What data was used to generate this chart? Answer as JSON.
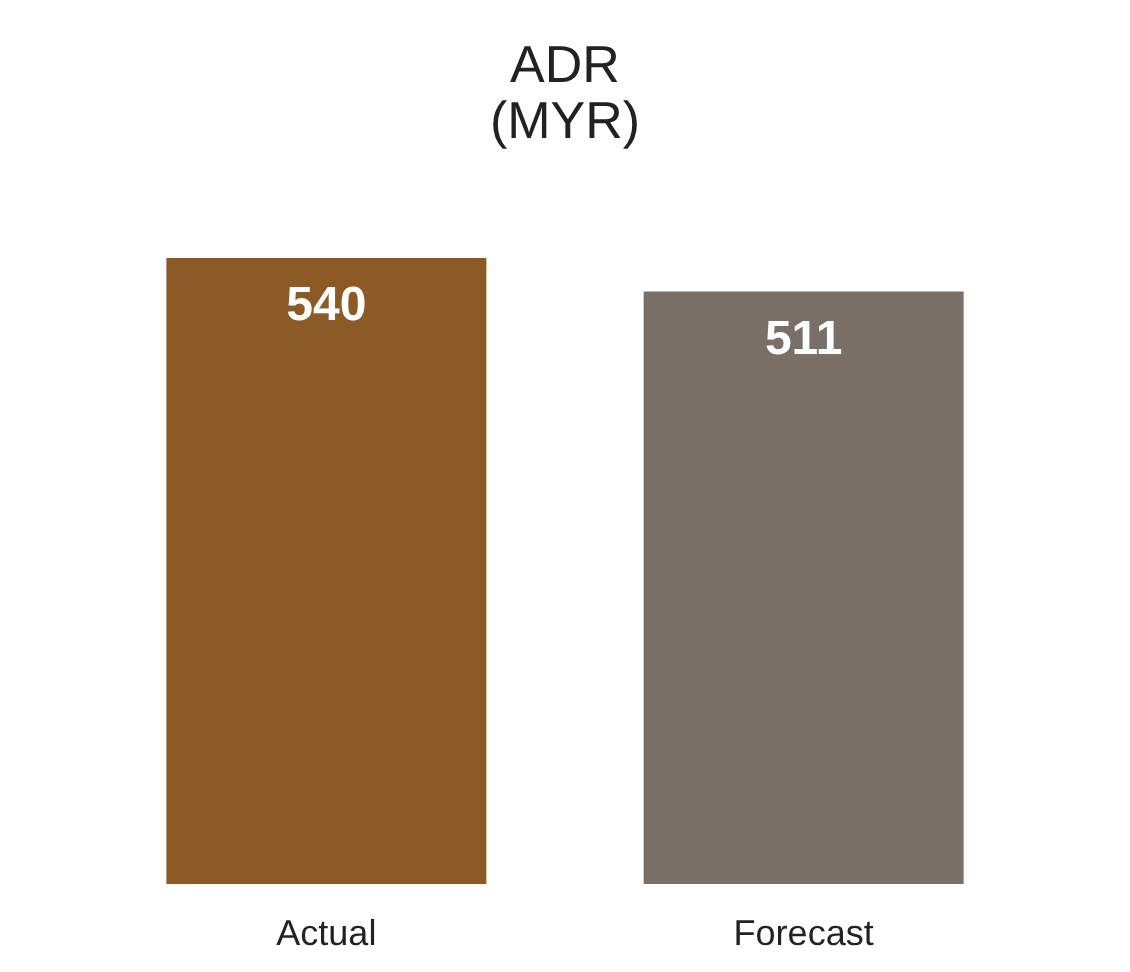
{
  "chart_data": {
    "type": "bar",
    "title": "ADR\n(MYR)",
    "categories": [
      "Actual",
      "Forecast"
    ],
    "values": [
      540,
      511
    ],
    "colors": [
      "#8c5a24",
      "#7a6f67"
    ],
    "data_labels": true,
    "tick_labels": "x",
    "grid": false,
    "legend": false
  }
}
